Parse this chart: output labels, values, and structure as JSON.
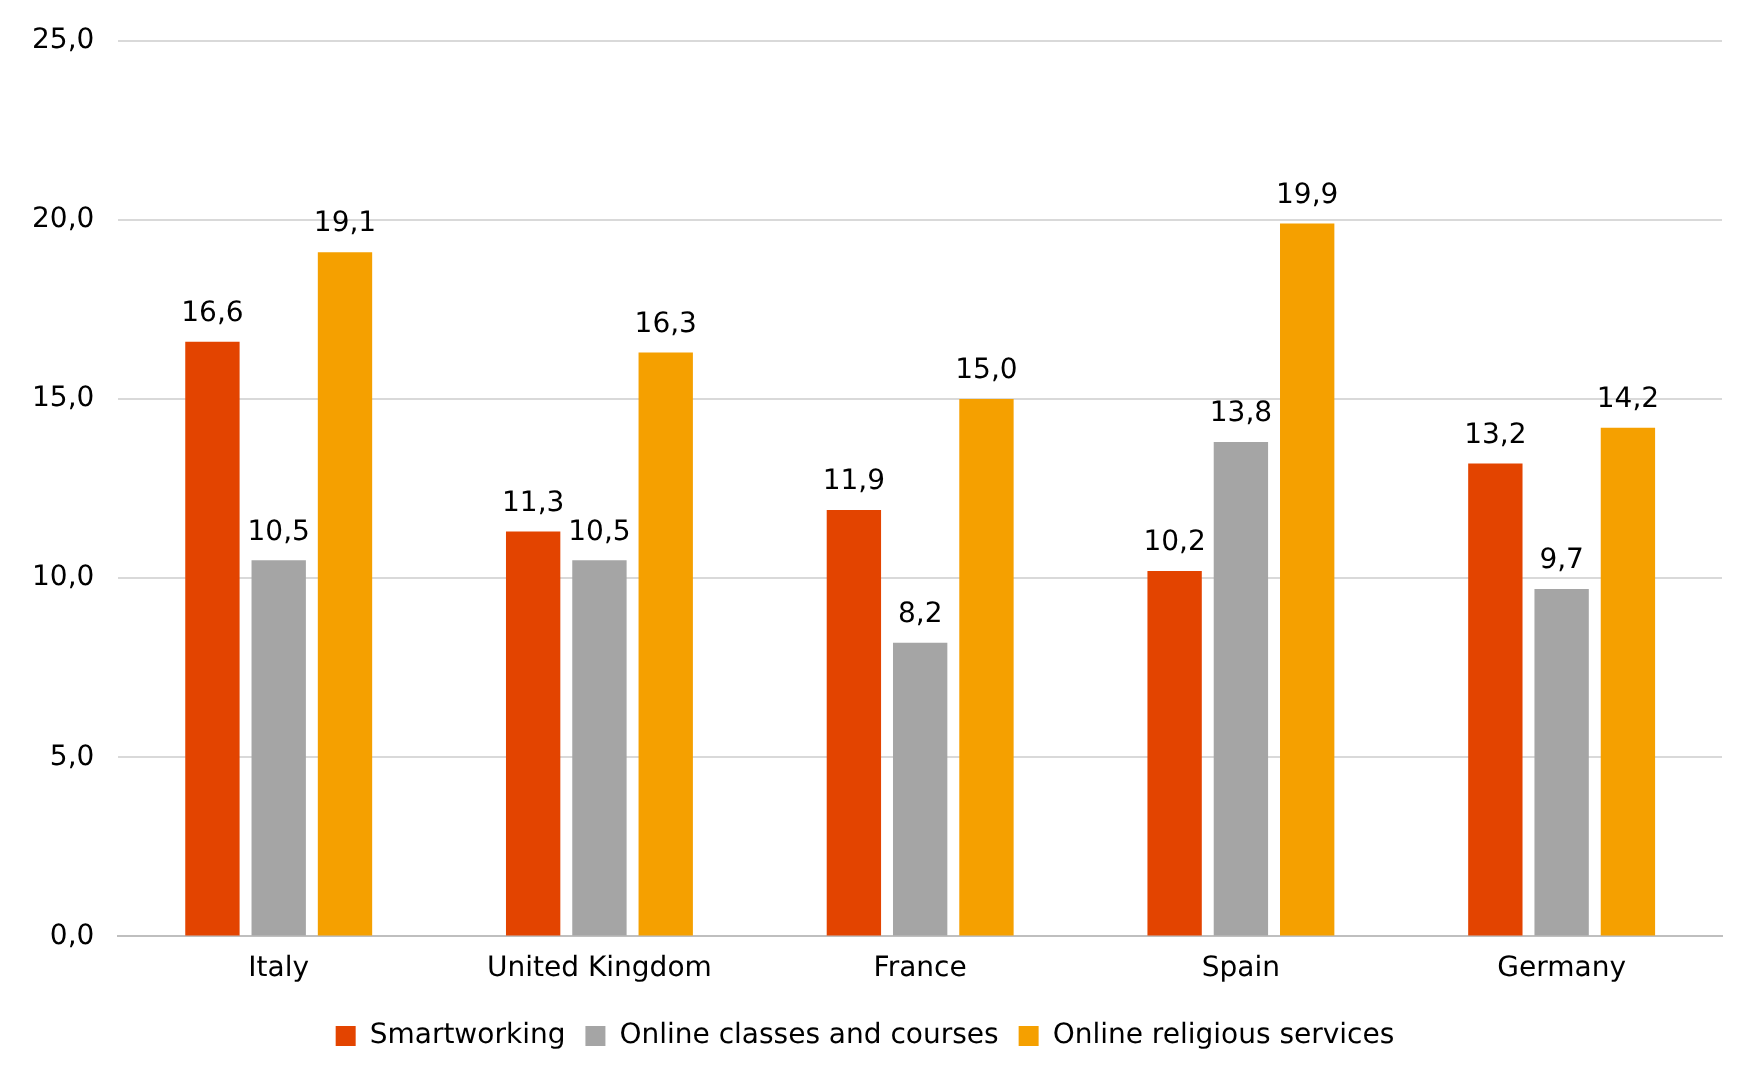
{
  "chart_data": {
    "type": "bar",
    "categories": [
      "Italy",
      "United Kingdom",
      "France",
      "Spain",
      "Germany"
    ],
    "series": [
      {
        "name": "Smartworking",
        "color": "#e34400",
        "values": [
          16.6,
          11.3,
          11.9,
          10.2,
          13.2
        ],
        "value_labels": [
          "16,6",
          "11,3",
          "11,9",
          "10,2",
          "13,2"
        ]
      },
      {
        "name": "Online classes and courses",
        "color": "#a5a5a5",
        "values": [
          10.5,
          10.5,
          8.2,
          13.8,
          9.7
        ],
        "value_labels": [
          "10,5",
          "10,5",
          "8,2",
          "13,8",
          "9,7"
        ]
      },
      {
        "name": "Online religious services",
        "color": "#f5a000",
        "values": [
          19.1,
          16.3,
          15.0,
          19.9,
          14.2
        ],
        "value_labels": [
          "19,1",
          "16,3",
          "15,0",
          "19,9",
          "14,2"
        ]
      }
    ],
    "ylim": [
      0,
      25
    ],
    "yticks": [
      {
        "value": 0,
        "label": "0,0"
      },
      {
        "value": 5,
        "label": "5,0"
      },
      {
        "value": 10,
        "label": "10,0"
      },
      {
        "value": 15,
        "label": "15,0"
      },
      {
        "value": 20,
        "label": "20,0"
      },
      {
        "value": 25,
        "label": "25,0"
      }
    ],
    "grid": "y",
    "legend": "bottom"
  }
}
